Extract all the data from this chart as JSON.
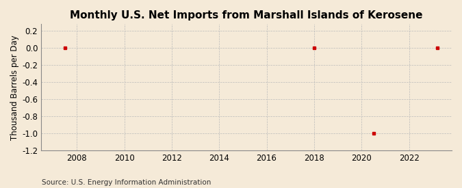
{
  "title": "Monthly U.S. Net Imports from Marshall Islands of Kerosene",
  "ylabel": "Thousand Barrels per Day",
  "source": "Source: U.S. Energy Information Administration",
  "xlim": [
    2006.5,
    2023.8
  ],
  "ylim": [
    -1.2,
    0.28
  ],
  "xticks": [
    2008,
    2010,
    2012,
    2014,
    2016,
    2018,
    2020,
    2022
  ],
  "yticks": [
    0.2,
    0.0,
    -0.2,
    -0.4,
    -0.6,
    -0.8,
    -1.0,
    -1.2
  ],
  "data_x": [
    2007.5,
    2018.0,
    2020.5,
    2023.2
  ],
  "data_y": [
    0.0,
    0.0,
    -1.0,
    0.0
  ],
  "marker_color": "#cc0000",
  "marker": "s",
  "marker_size": 3.5,
  "bg_color": "#f5ead8",
  "plot_bg_color": "#f5ead8",
  "grid_color": "#bbbbbb",
  "title_fontsize": 11,
  "label_fontsize": 8.5,
  "tick_fontsize": 8.5,
  "source_fontsize": 7.5
}
